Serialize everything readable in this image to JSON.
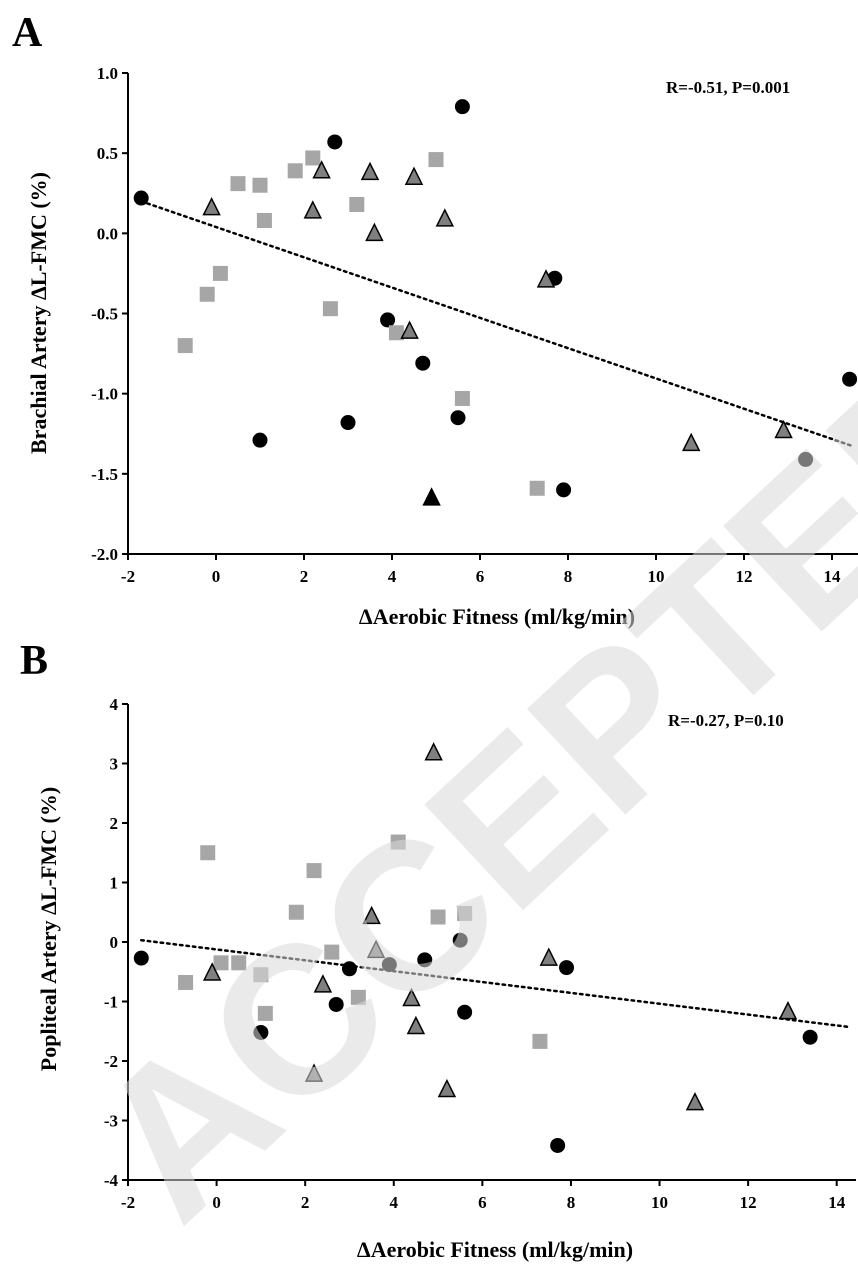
{
  "watermark": "ACCEPTED",
  "chart_data": [
    {
      "type": "scatter",
      "panel_label": "A",
      "xlabel": "ΔAerobic Fitness (ml/kg/min)",
      "ylabel": "Brachial Artery ΔL-FMC (%)",
      "xlim": [
        -2,
        14.5
      ],
      "ylim": [
        -2.0,
        1.0
      ],
      "xticks": [
        -2,
        0,
        2,
        4,
        6,
        8,
        10,
        12,
        14
      ],
      "yticks": [
        -2.0,
        -1.5,
        -1.0,
        -0.5,
        0.0,
        0.5,
        1.0
      ],
      "ytick_labels": [
        "-2.0",
        "-1.5",
        "-1.0",
        "-0.5",
        "0.0",
        "0.5",
        "1.0"
      ],
      "annotation": "R=-0.51, P=0.001",
      "trendline": {
        "style": "dotted",
        "x": [
          -1.7,
          14.5
        ],
        "y": [
          0.2,
          -1.33
        ]
      },
      "series": [
        {
          "marker": "circle",
          "color": "#000000",
          "x": [
            -1.7,
            1.0,
            2.7,
            3.0,
            3.9,
            4.7,
            5.5,
            5.6,
            7.7,
            7.9,
            13.4,
            14.4
          ],
          "y": [
            0.22,
            -1.29,
            0.57,
            -1.18,
            -0.54,
            -0.81,
            -1.15,
            0.79,
            -0.28,
            -1.6,
            -1.41,
            -0.91
          ]
        },
        {
          "marker": "square",
          "color": "#a6a6a6",
          "x": [
            -0.7,
            -0.2,
            0.1,
            0.5,
            1.0,
            1.1,
            1.8,
            2.2,
            2.6,
            3.2,
            4.1,
            5.0,
            5.6,
            7.3
          ],
          "y": [
            -0.7,
            -0.38,
            -0.25,
            0.31,
            0.3,
            0.08,
            0.39,
            0.47,
            -0.47,
            0.18,
            -0.62,
            0.46,
            -1.03,
            -1.59
          ]
        },
        {
          "marker": "triangle",
          "color": "#808080",
          "x": [
            -0.1,
            2.2,
            2.4,
            3.5,
            3.6,
            4.4,
            4.5,
            5.2,
            7.5,
            10.8,
            12.9
          ],
          "y": [
            0.16,
            0.14,
            0.39,
            0.38,
            0.0,
            -0.61,
            0.35,
            0.09,
            -0.29,
            -1.31,
            -1.23
          ]
        },
        {
          "marker": "triangle",
          "color": "#000000",
          "x": [
            4.9
          ],
          "y": [
            -1.65
          ]
        }
      ]
    },
    {
      "type": "scatter",
      "panel_label": "B",
      "xlabel": "ΔAerobic Fitness (ml/kg/min)",
      "ylabel": "Popliteal Artery ΔL-FMC (%)",
      "xlim": [
        -2,
        14.3
      ],
      "ylim": [
        -4,
        4
      ],
      "xticks": [
        -2,
        0,
        2,
        4,
        6,
        8,
        10,
        12,
        14
      ],
      "yticks": [
        -4,
        -3,
        -2,
        -1,
        0,
        1,
        2,
        3,
        4
      ],
      "ytick_labels": [
        "-4",
        "-3",
        "-2",
        "-1",
        "0",
        "1",
        "2",
        "3",
        "4"
      ],
      "annotation": "R=-0.27, P=0.10",
      "trendline": {
        "style": "dotted",
        "x": [
          -1.7,
          14.3
        ],
        "y": [
          0.03,
          -1.43
        ]
      },
      "series": [
        {
          "marker": "circle",
          "color": "#000000",
          "x": [
            -1.7,
            1.0,
            2.7,
            3.0,
            3.9,
            4.7,
            5.5,
            5.6,
            7.7,
            7.9,
            13.4
          ],
          "y": [
            -0.27,
            -1.52,
            -1.05,
            -0.45,
            -0.38,
            -0.3,
            0.03,
            -1.18,
            -3.42,
            -0.43,
            -1.6
          ]
        },
        {
          "marker": "square",
          "color": "#a6a6a6",
          "x": [
            -0.7,
            -0.2,
            0.1,
            0.5,
            1.0,
            1.1,
            1.8,
            2.2,
            2.6,
            3.2,
            4.1,
            5.0,
            5.6,
            7.3
          ],
          "y": [
            -0.68,
            1.5,
            -0.35,
            -0.35,
            -0.55,
            -1.2,
            0.5,
            1.2,
            -0.17,
            -0.93,
            1.68,
            0.42,
            0.48,
            -1.67
          ]
        },
        {
          "marker": "triangle",
          "color": "#808080",
          "x": [
            -0.1,
            2.2,
            2.4,
            3.5,
            3.6,
            4.4,
            4.5,
            4.9,
            5.2,
            7.5,
            10.8,
            12.9
          ],
          "y": [
            -0.52,
            -2.22,
            -0.72,
            0.43,
            -0.14,
            -0.95,
            -1.42,
            3.18,
            -2.48,
            -0.27,
            -2.7,
            -1.17
          ]
        }
      ]
    }
  ]
}
